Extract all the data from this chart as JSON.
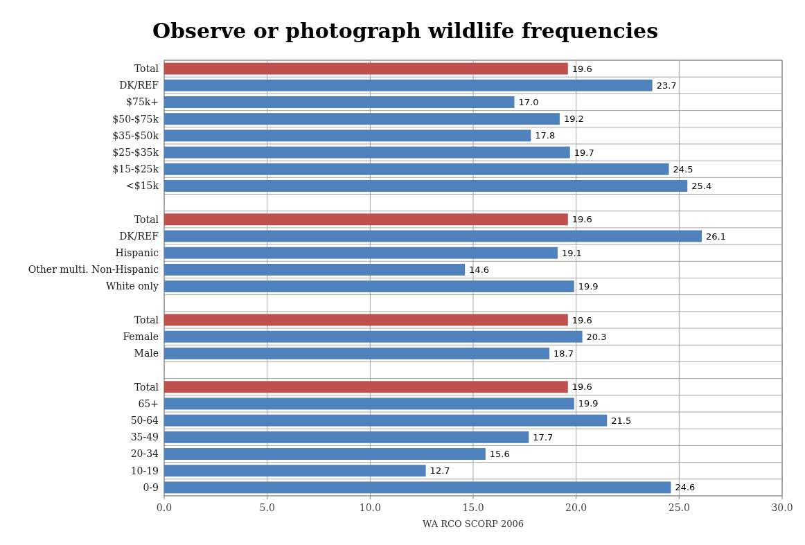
{
  "chart_data": {
    "type": "bar",
    "orientation": "horizontal",
    "title": "Observe or photograph wildlife frequencies",
    "xlabel": "WA RCO SCORP 2006",
    "categories": [
      "Total",
      "DK/REF",
      "$75k+",
      "$50-$75k",
      "$35-$50k",
      "$25-$35k",
      "$15-$25k",
      "<$15k",
      null,
      "Total",
      "DK/REF",
      "Hispanic",
      "Other multi. Non-Hispanic",
      "White only",
      null,
      "Total",
      "Female",
      "Male",
      null,
      "Total",
      "65+",
      "50-64",
      "35-49",
      "20-34",
      "10-19",
      "0-9"
    ],
    "values": [
      19.6,
      23.7,
      17.0,
      19.2,
      17.8,
      19.7,
      24.5,
      25.4,
      null,
      19.6,
      26.1,
      19.1,
      14.6,
      19.9,
      null,
      19.6,
      20.3,
      18.7,
      null,
      19.6,
      19.9,
      21.5,
      17.7,
      15.6,
      12.7,
      24.6
    ],
    "value_labels": [
      "19.6",
      "23.7",
      "17.0",
      "19.2",
      "17.8",
      "19.7",
      "24.5",
      "25.4",
      null,
      "19.6",
      "26.1",
      "19.1",
      "14.6",
      "19.9",
      null,
      "19.6",
      "20.3",
      "18.7",
      null,
      "19.6",
      "19.9",
      "21.5",
      "17.7",
      "15.6",
      "12.7",
      "24.6"
    ],
    "colors": [
      "#c0504d",
      "#4f81bd",
      "#4f81bd",
      "#4f81bd",
      "#4f81bd",
      "#4f81bd",
      "#4f81bd",
      "#4f81bd",
      null,
      "#c0504d",
      "#4f81bd",
      "#4f81bd",
      "#4f81bd",
      "#4f81bd",
      null,
      "#c0504d",
      "#4f81bd",
      "#4f81bd",
      null,
      "#c0504d",
      "#4f81bd",
      "#4f81bd",
      "#4f81bd",
      "#4f81bd",
      "#4f81bd",
      "#4f81bd"
    ],
    "xlim": [
      0,
      30
    ],
    "xticks": [
      {
        "value": 0,
        "label": "0.0"
      },
      {
        "value": 5,
        "label": "5.0"
      },
      {
        "value": 10,
        "label": "10.0"
      },
      {
        "value": 15,
        "label": "15.0"
      },
      {
        "value": 20,
        "label": "20.0"
      },
      {
        "value": 25,
        "label": "25.0"
      },
      {
        "value": 30,
        "label": "30.0"
      }
    ],
    "grid": true
  }
}
